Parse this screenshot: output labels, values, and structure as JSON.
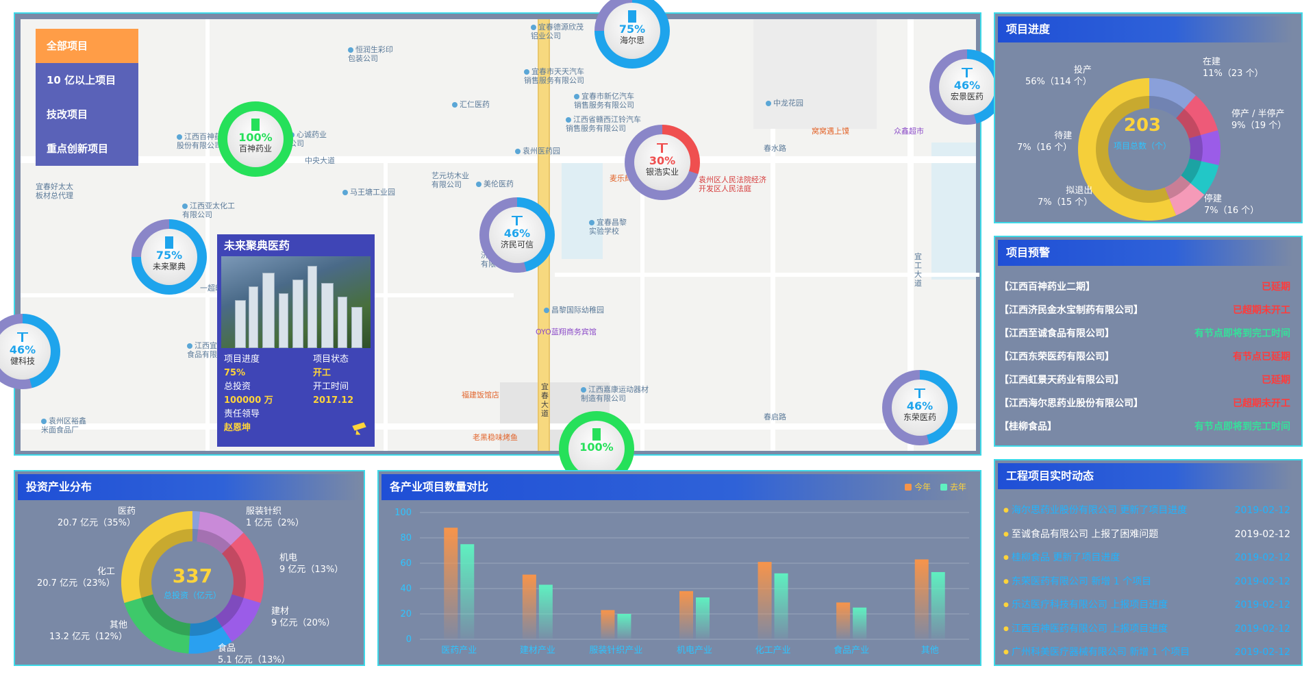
{
  "map": {
    "categories": [
      "全部项目",
      "10 亿以上项目",
      "技改项目",
      "重点创新项目"
    ],
    "active_category": 0,
    "markers": [
      {
        "pct": "75%",
        "name": "海尔思",
        "color": "#1ea4ec"
      },
      {
        "pct": "46%",
        "name": "宏景医药",
        "color": "#1ea4ec"
      },
      {
        "pct": "100%",
        "name": "百神药业",
        "color": "#26e05a"
      },
      {
        "pct": "30%",
        "name": "银浩实业",
        "color": "#ef4f4f"
      },
      {
        "pct": "46%",
        "name": "济民可信",
        "color": "#1ea4ec"
      },
      {
        "pct": "75%",
        "name": "未来聚典",
        "color": "#1ea4ec"
      },
      {
        "pct": "46%",
        "name": "东荣医药",
        "color": "#1ea4ec"
      },
      {
        "pct": "46%",
        "name": "健科技",
        "color": "#1ea4ec"
      },
      {
        "pct": "100%",
        "name": "",
        "color": "#26e05a"
      }
    ],
    "pois": [
      "宜春德源欣茂\n铝业公司",
      "恒润生彩印\n包装公司",
      "宜春市天天汽车\n销售服务有限公司",
      "汇仁医药",
      "宜春市新亿汽车\n销售服务有限公司",
      "江西省赣西江铃汽车\n销售服务有限公司",
      "江西百神药业\n股份有限公司",
      "心诚药业\n公司",
      "袁州医药园",
      "中央大道",
      "中龙花园",
      "窝窝遇上馍",
      "众鑫超市",
      "春水路",
      "宜春好太太\n板材总代理",
      "艺元坊木业\n有限公司",
      "美伦医药",
      "马王塘工业园",
      "麦乐辉",
      "袁州区人民法院经济\n开发区人民法庭",
      "江西亚太化工\n有限公司",
      "宜春昌黎\n实验学校",
      "一超印刷",
      "昌黎国际幼稚园",
      "OYO蓝翔商务宾馆",
      "宜工大道",
      "江西宜人\n食品有限公司",
      "福建饭馆店",
      "江西嘉康运动器材\n制造有限公司",
      "宜春大道",
      "春启路",
      "袁州区裕鑫\n米面食品厂",
      "老黑稳味烤鱼",
      "济民可信\n有限公司"
    ],
    "popup": {
      "title": "未来聚典医药",
      "progress_label": "项目进度",
      "progress_value": "75%",
      "status_label": "项目状态",
      "status_value": "开工",
      "invest_label": "总投资",
      "invest_value": "100000 万",
      "start_label": "开工时间",
      "start_value": "2017.12",
      "leader_label": "责任领导",
      "leader_value": "赵恩坤"
    }
  },
  "progress": {
    "title": "项目进度",
    "total": "203",
    "total_label": "项目总数（个）",
    "segments": [
      {
        "name": "在建",
        "value": 23,
        "pct": "11%",
        "count": "（23 个）",
        "color": "#8aa0da"
      },
      {
        "name": "停产 / 半停产",
        "value": 19,
        "pct": "9%",
        "count": "（19 个）",
        "color": "#ee5a78"
      },
      {
        "name": "停建",
        "value": 16,
        "pct": "7%",
        "count": "（16 个）",
        "color": "#9b5ce8"
      },
      {
        "name": "拟退出",
        "value": 15,
        "pct": "7%",
        "count": "（15 个）",
        "color": "#22c7c7"
      },
      {
        "name": "待建",
        "value": 16,
        "pct": "7%",
        "count": "（16 个）",
        "color": "#f59ab8"
      },
      {
        "name": "投产",
        "value": 114,
        "pct": "56%",
        "count": "（114 个）",
        "color": "#f5cf3a"
      }
    ],
    "labels": [
      "投产\n56%（114 个）",
      "在建\n11%（23 个）",
      "停产 / 半停产\n9%（19 个）",
      "待建\n7%（16 个）",
      "拟退出\n7%（15 个）",
      "停建\n7%（16 个）"
    ]
  },
  "warning": {
    "title": "项目预警",
    "rows": [
      {
        "name": "【江西百神药业二期】",
        "status": "已延期",
        "color": "#ff3b3b"
      },
      {
        "name": "【江西济民金水宝制药有限公司】",
        "status": "已超期未开工",
        "color": "#ff3b3b"
      },
      {
        "name": "【江西至诚食品有限公司】",
        "status": "有节点即将到完工时间",
        "color": "#35e29a"
      },
      {
        "name": "【江西东荣医药有限公司】",
        "status": "有节点已延期",
        "color": "#ff3b3b"
      },
      {
        "name": "【江西虹景天药业有限公司】",
        "status": "已延期",
        "color": "#ff3b3b"
      },
      {
        "name": "【江西海尔思药业股份有限公司】",
        "status": "已超期未开工",
        "color": "#ff3b3b"
      },
      {
        "name": "【桂柳食品】",
        "status": "有节点即将到完工时间",
        "color": "#35e29a"
      }
    ]
  },
  "dynamic": {
    "title": "工程项目实时动态",
    "rows": [
      {
        "text": "海尔思药业股份有限公司  更新了项目进度",
        "date": "2019-02-12",
        "hl": false
      },
      {
        "text": "至诚食品有限公司  上报了困难问题",
        "date": "2019-02-12",
        "hl": true
      },
      {
        "text": "桂柳食品  更新了项目进度",
        "date": "2019-02-12",
        "hl": false
      },
      {
        "text": "东荣医药有限公司  新增 1 个项目",
        "date": "2019-02-12",
        "hl": false
      },
      {
        "text": "乐达医疗科技有限公司  上报项目进度",
        "date": "2019-02-12",
        "hl": false
      },
      {
        "text": "江西百神医药有限公司  上报项目进度",
        "date": "2019-02-12",
        "hl": false
      },
      {
        "text": "广州科美医疗器械有限公司  新增 1 个项目",
        "date": "2019-02-12",
        "hl": false
      }
    ]
  },
  "invest": {
    "title": "投资产业分布",
    "total": "337",
    "total_label": "总投资（亿元）",
    "segments": [
      {
        "name": "服装针织",
        "value": 2,
        "color": "#8aa0da"
      },
      {
        "name": "机电",
        "value": 13,
        "color": "#c98ad8"
      },
      {
        "name": "建材",
        "value": 20,
        "color": "#ee5a78"
      },
      {
        "name": "食品",
        "value": 13,
        "color": "#9b5ce8"
      },
      {
        "name": "其他",
        "value": 12,
        "color": "#2aa0f0"
      },
      {
        "name": "化工",
        "value": 23,
        "color": "#3ec96a"
      },
      {
        "name": "医药",
        "value": 35,
        "color": "#f5cf3a"
      }
    ],
    "labels": [
      "医药\n20.7 亿元（35%）",
      "服装针织\n1 亿元（2%）",
      "机电\n9 亿元（13%）",
      "化工\n20.7 亿元（23%）",
      "建材\n9 亿元（20%）",
      "其他\n13.2 亿元（12%）",
      "食品\n5.1 亿元（13%）"
    ]
  },
  "compare": {
    "title": "各产业项目数量对比",
    "legend_this": "今年",
    "legend_last": "去年",
    "color_this": "#f7944a",
    "color_last": "#5ff0c0"
  },
  "chart_data": {
    "type": "bar",
    "categories": [
      "医药产业",
      "建材产业",
      "服装针织产业",
      "机电产业",
      "化工产业",
      "食品产业",
      "其他"
    ],
    "series": [
      {
        "name": "今年",
        "values": [
          88,
          51,
          23,
          38,
          61,
          29,
          63
        ]
      },
      {
        "name": "去年",
        "values": [
          75,
          43,
          20,
          33,
          52,
          25,
          53
        ]
      }
    ],
    "yticks": [
      "100",
      "80",
      "60",
      "40",
      "20",
      "0"
    ],
    "ylim": [
      0,
      100
    ],
    "grid": true,
    "legend": "top-right"
  }
}
